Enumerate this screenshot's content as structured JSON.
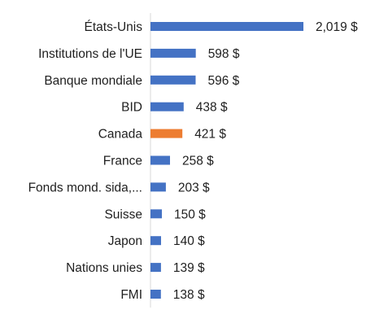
{
  "chart_data": {
    "type": "bar",
    "orientation": "horizontal",
    "categories": [
      "États-Unis",
      "Institutions de l'UE",
      "Banque mondiale",
      "BID",
      "Canada",
      "France",
      "Fonds mond. sida,...",
      "Suisse",
      "Japon",
      "Nations unies",
      "FMI"
    ],
    "values": [
      2019,
      598,
      596,
      438,
      421,
      258,
      203,
      150,
      140,
      139,
      138
    ],
    "value_labels": [
      "2,019 $",
      "598 $",
      "596 $",
      "438 $",
      "421 $",
      "258 $",
      "203 $",
      "150 $",
      "140 $",
      "139 $",
      "138 $"
    ],
    "highlight_category": "Canada",
    "colors": {
      "default": "#4472C4",
      "highlight": "#ED7D31"
    },
    "title": "",
    "xlabel": "",
    "ylabel": "",
    "xlim": [
      0,
      2019
    ],
    "grid": false,
    "legend": "none"
  }
}
